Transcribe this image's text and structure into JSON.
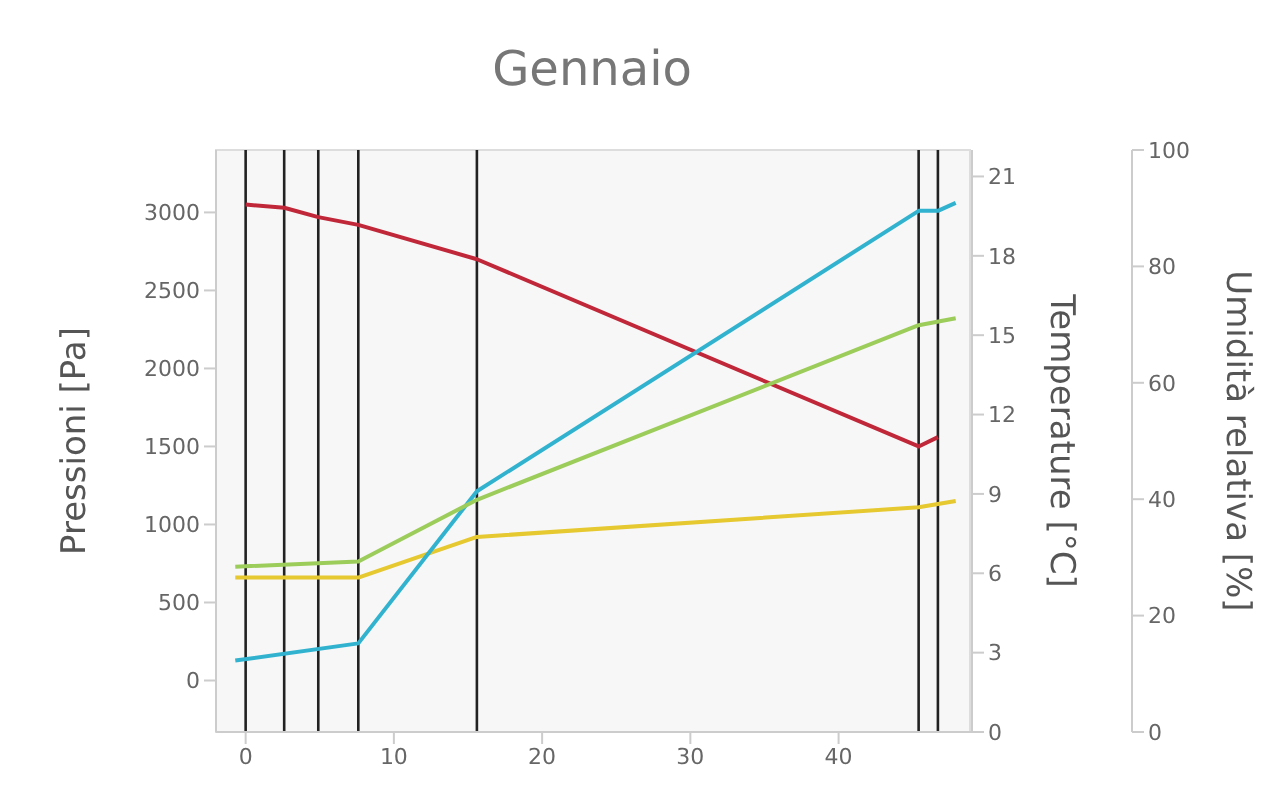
{
  "chart_data": {
    "type": "line",
    "title": "Gennaio",
    "ylabel": "Pressioni [Pa]",
    "y2label": "Temperature [°C]",
    "y3label": "Umidità relativa [%]",
    "xlim": [
      -2,
      49
    ],
    "xticks": [
      0,
      10,
      20,
      30,
      40
    ],
    "ylim": [
      -330,
      3400
    ],
    "yticks": [
      0,
      500,
      1000,
      1500,
      2000,
      2500,
      3000
    ],
    "y2lim": [
      0,
      22
    ],
    "y2ticks": [
      0,
      3,
      6,
      9,
      12,
      15,
      18,
      21
    ],
    "y3lim": [
      0,
      100
    ],
    "y3ticks": [
      0,
      20,
      40,
      60,
      80,
      100
    ],
    "marker": "none",
    "line_style": "solid",
    "ref_lines": [
      {
        "axis": "x",
        "value": 0,
        "color": "#222222"
      },
      {
        "axis": "x",
        "value": 2.6,
        "color": "#222222"
      },
      {
        "axis": "x",
        "value": 4.9,
        "color": "#222222"
      },
      {
        "axis": "x",
        "value": 7.6,
        "color": "#222222"
      },
      {
        "axis": "x",
        "value": 15.6,
        "color": "#222222"
      },
      {
        "axis": "x",
        "value": 45.4,
        "color": "#222222"
      },
      {
        "axis": "x",
        "value": 46.7,
        "color": "#222222"
      }
    ],
    "series": [
      {
        "color": "#c0283a",
        "axis": "y",
        "x": [
          0,
          2.6,
          4.9,
          7.6,
          15.6,
          45.4,
          46.7
        ],
        "values": [
          3050,
          3030,
          2970,
          2920,
          2700,
          1500,
          1560
        ]
      },
      {
        "color": "#e6c830",
        "axis": "y",
        "x": [
          -0.7,
          7.6,
          15.6,
          45.4,
          47.9
        ],
        "values": [
          660,
          660,
          920,
          1110,
          1150
        ]
      },
      {
        "color": "#31b3cf",
        "axis": "y2",
        "x": [
          -0.7,
          7.6,
          15.6,
          45.4,
          46.7,
          47.9
        ],
        "values": [
          2.7,
          3.35,
          9.1,
          19.7,
          19.7,
          20
        ]
      },
      {
        "color": "#9ccc5a",
        "axis": "y3",
        "x": [
          -0.7,
          7.6,
          15.6,
          45.4,
          47.9
        ],
        "values": [
          28.4,
          29.3,
          39.9,
          69.9,
          71.1
        ]
      }
    ]
  }
}
